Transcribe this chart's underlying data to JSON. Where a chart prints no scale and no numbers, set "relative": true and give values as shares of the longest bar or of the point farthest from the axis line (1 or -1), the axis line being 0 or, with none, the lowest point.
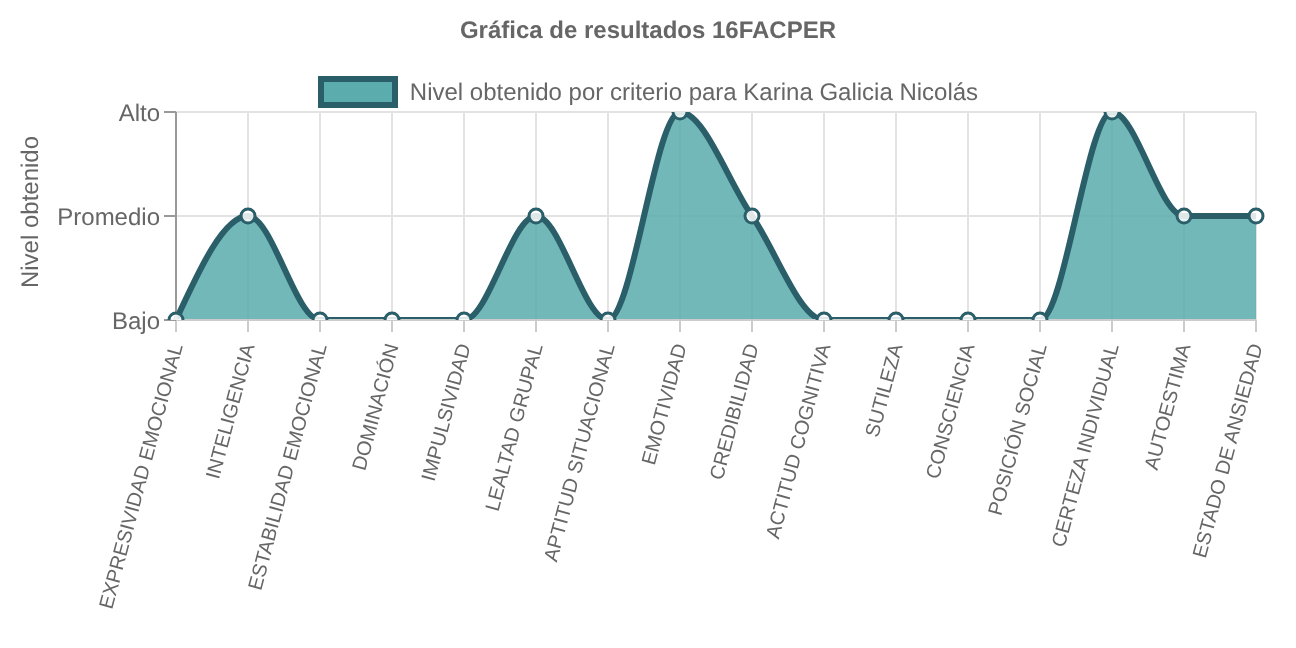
{
  "chart_data": {
    "type": "area",
    "title": "Gráfica de resultados 16FACPER",
    "ylabel": "Nivel obtenido",
    "categories": [
      "EXPRESIVIDAD EMOCIONAL",
      "INTELIGENCIA",
      "ESTABILIDAD EMOCIONAL",
      "DOMINACIÓN",
      "IMPULSIVIDAD",
      "LEALTAD GRUPAL",
      "APTITUD SITUACIONAL",
      "EMOTIVIDAD",
      "CREDIBILIDAD",
      "ACTITUD COGNITIVA",
      "SUTILEZA",
      "CONSCIENCIA",
      "POSICIÓN SOCIAL",
      "CERTEZA INDIVIDUAL",
      "AUTOESTIMA",
      "ESTADO DE ANSIEDAD"
    ],
    "y_categories": [
      "Alto",
      "Promedio",
      "Bajo"
    ],
    "relative": true,
    "series": [
      {
        "name": "Nivel obtenido por criterio para Karina Galicia Nicolás",
        "color": "#2a5f6a",
        "values": [
          0,
          0.5,
          0,
          0,
          0,
          0.5,
          0,
          1,
          0.5,
          0,
          0,
          0,
          0,
          1,
          0.5,
          0.5
        ]
      }
    ],
    "grid": true,
    "legend": "top",
    "marker": "circle",
    "line_style": "solid"
  }
}
